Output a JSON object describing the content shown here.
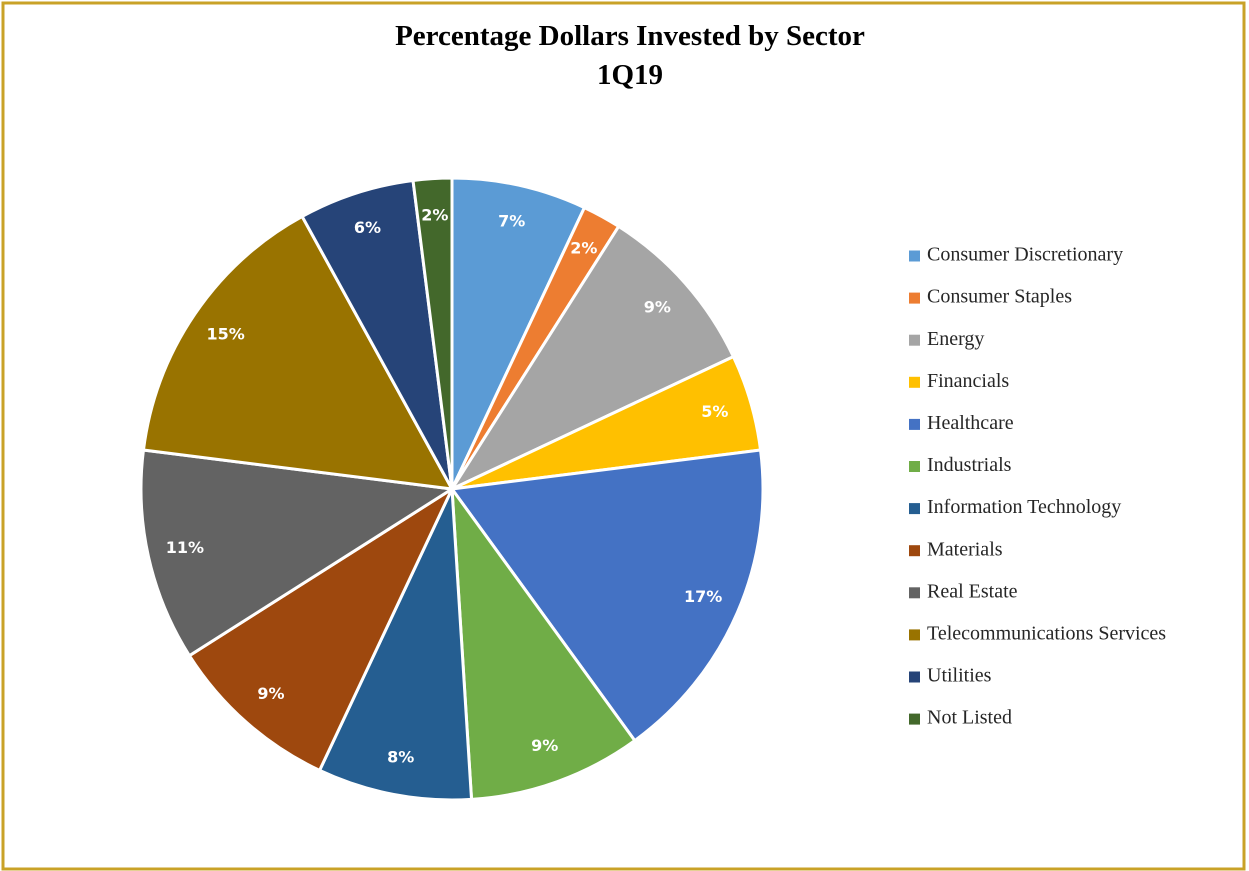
{
  "chart_data": {
    "type": "pie",
    "title": "Percentage Dollars Invested by Sector",
    "subtitle": "1Q19",
    "categories": [
      "Consumer Discretionary",
      "Consumer Staples",
      "Energy",
      "Financials",
      "Healthcare",
      "Industrials",
      "Information Technology",
      "Materials",
      "Real Estate",
      "Telecommunications Services",
      "Utilities",
      "Not Listed"
    ],
    "values": [
      7,
      2,
      9,
      5,
      17,
      9,
      8,
      9,
      11,
      15,
      6,
      2
    ],
    "value_labels": [
      "7%",
      "2%",
      "9%",
      "5%",
      "17%",
      "9%",
      "8%",
      "9%",
      "11%",
      "15%",
      "6%",
      "2%"
    ],
    "colors": [
      "#5b9bd5",
      "#ed7d31",
      "#a5a5a5",
      "#ffc000",
      "#4472c4",
      "#70ad47",
      "#255e91",
      "#9e480e",
      "#636363",
      "#997300",
      "#264478",
      "#43682b"
    ],
    "legend": "right"
  }
}
